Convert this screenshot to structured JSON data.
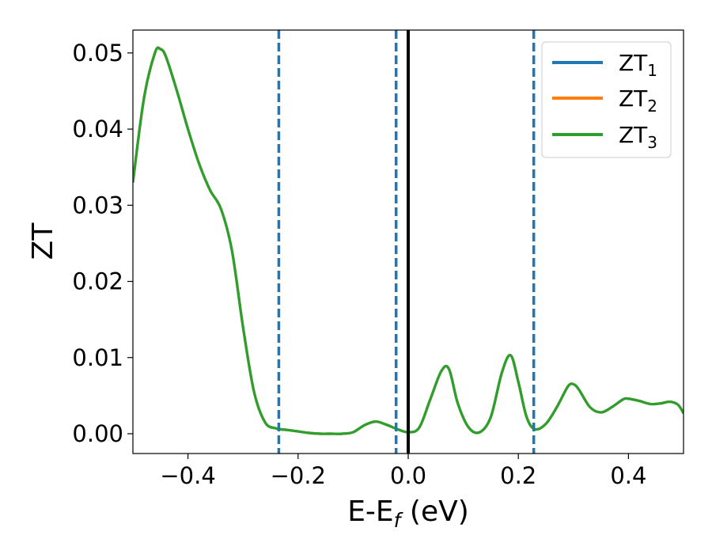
{
  "chart_data": {
    "type": "line",
    "ylabel": "ZT",
    "xlabel": {
      "main": "E-E",
      "sub": "f",
      "unit": " (eV)"
    },
    "xlim": [
      -0.5,
      0.5
    ],
    "ylim": [
      -0.0026,
      0.053
    ],
    "xticks": [
      -0.4,
      -0.2,
      0.0,
      0.2,
      0.4
    ],
    "xtick_labels": [
      "−0.4",
      "−0.2",
      "0.0",
      "0.2",
      "0.4"
    ],
    "yticks": [
      0.0,
      0.01,
      0.02,
      0.03,
      0.04,
      0.05
    ],
    "ytick_labels": [
      "0.00",
      "0.01",
      "0.02",
      "0.03",
      "0.04",
      "0.05"
    ],
    "grid": false,
    "legend_position": "top-right",
    "vlines_dashed": [
      -0.235,
      -0.022,
      0.228
    ],
    "vline_solid": 0.0,
    "x": [
      -0.5,
      -0.48,
      -0.46,
      -0.45,
      -0.44,
      -0.42,
      -0.4,
      -0.38,
      -0.36,
      -0.34,
      -0.32,
      -0.3,
      -0.28,
      -0.26,
      -0.24,
      -0.22,
      -0.2,
      -0.18,
      -0.16,
      -0.14,
      -0.12,
      -0.1,
      -0.08,
      -0.06,
      -0.04,
      -0.02,
      0.0,
      0.02,
      0.04,
      0.06,
      0.074,
      0.09,
      0.11,
      0.13,
      0.15,
      0.17,
      0.186,
      0.2,
      0.215,
      0.23,
      0.25,
      0.27,
      0.29,
      0.3,
      0.31,
      0.33,
      0.35,
      0.37,
      0.39,
      0.4,
      0.42,
      0.44,
      0.46,
      0.475,
      0.49,
      0.5
    ],
    "series": [
      {
        "name": "ZT₁",
        "label_main": "ZT",
        "label_sub": "1",
        "color": "#1f77b4",
        "values": [
          0.033,
          0.044,
          0.05,
          0.0505,
          0.0495,
          0.045,
          0.04,
          0.0355,
          0.032,
          0.0295,
          0.024,
          0.014,
          0.0055,
          0.0015,
          0.0007,
          0.0005,
          0.0003,
          0.0001,
          0.0,
          0.0,
          0.0,
          0.0002,
          0.0011,
          0.0016,
          0.0012,
          0.0006,
          0.0002,
          0.0008,
          0.0045,
          0.0082,
          0.0085,
          0.004,
          0.0008,
          0.0002,
          0.0022,
          0.008,
          0.0103,
          0.0068,
          0.0022,
          0.0006,
          0.0013,
          0.0035,
          0.0062,
          0.0065,
          0.0058,
          0.0035,
          0.0028,
          0.0035,
          0.0045,
          0.0046,
          0.0043,
          0.0039,
          0.004,
          0.0042,
          0.0038,
          0.0027
        ]
      },
      {
        "name": "ZT₂",
        "label_main": "ZT",
        "label_sub": "2",
        "color": "#ff7f0e",
        "values": [
          0.033,
          0.044,
          0.05,
          0.0505,
          0.0495,
          0.045,
          0.04,
          0.0355,
          0.032,
          0.0295,
          0.024,
          0.014,
          0.0055,
          0.0015,
          0.0007,
          0.0005,
          0.0003,
          0.0001,
          0.0,
          0.0,
          0.0,
          0.0002,
          0.0011,
          0.0016,
          0.0012,
          0.0006,
          0.0002,
          0.0008,
          0.0045,
          0.0082,
          0.0085,
          0.004,
          0.0008,
          0.0002,
          0.0022,
          0.008,
          0.0103,
          0.0068,
          0.0022,
          0.0006,
          0.0013,
          0.0035,
          0.0062,
          0.0065,
          0.0058,
          0.0035,
          0.0028,
          0.0035,
          0.0045,
          0.0046,
          0.0043,
          0.0039,
          0.004,
          0.0042,
          0.0038,
          0.0027
        ]
      },
      {
        "name": "ZT₃",
        "label_main": "ZT",
        "label_sub": "3",
        "color": "#2ca02c",
        "values": [
          0.033,
          0.044,
          0.05,
          0.0505,
          0.0495,
          0.045,
          0.04,
          0.0355,
          0.032,
          0.0295,
          0.024,
          0.014,
          0.0055,
          0.0015,
          0.0007,
          0.0005,
          0.0003,
          0.0001,
          0.0,
          0.0,
          0.0,
          0.0002,
          0.0011,
          0.0016,
          0.0012,
          0.0006,
          0.0002,
          0.0008,
          0.0045,
          0.0082,
          0.0085,
          0.004,
          0.0008,
          0.0002,
          0.0022,
          0.008,
          0.0103,
          0.0068,
          0.0022,
          0.0006,
          0.0013,
          0.0035,
          0.0062,
          0.0065,
          0.0058,
          0.0035,
          0.0028,
          0.0035,
          0.0045,
          0.0046,
          0.0043,
          0.0039,
          0.004,
          0.0042,
          0.0038,
          0.0027
        ]
      }
    ]
  }
}
